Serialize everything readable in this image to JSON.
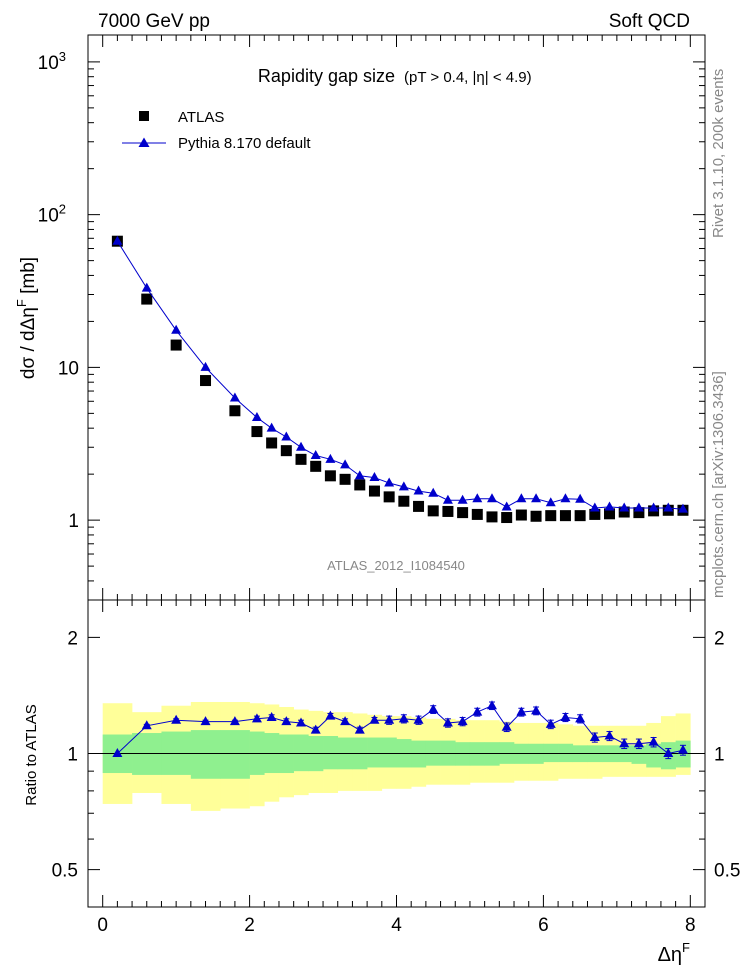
{
  "header": {
    "left": "7000 GeV pp",
    "right": "Soft QCD"
  },
  "side_text": {
    "top": "Rivet 3.1.10,  200k events",
    "bottom": "mcplots.cern.ch [arXiv:1306.3436]"
  },
  "chart_data": [
    {
      "type": "scatter",
      "title_main": "Rapidity gap size",
      "title_cuts": "(pT > 0.4, |η| < 4.9)",
      "ylabel": "dσ / dΔηF [mb]",
      "ylabel_parts": {
        "pre": "dσ / dΔη",
        "sup": "F",
        "post": " [mb]"
      },
      "yscale": "log",
      "xlim": [
        -0.2,
        8.2
      ],
      "ylim": [
        0.3,
        1500
      ],
      "y_ticks": [
        {
          "value": 1000,
          "base": "10",
          "exp": "3"
        },
        {
          "value": 100,
          "base": "10",
          "exp": "2"
        },
        {
          "value": 10,
          "base": "10",
          "exp": ""
        },
        {
          "value": 1,
          "base": "1",
          "exp": ""
        }
      ],
      "watermark": "ATLAS_2012_I1084540",
      "legend": [
        {
          "label": "ATLAS",
          "marker": "square",
          "color": "#000000"
        },
        {
          "label": "Pythia 8.170 default",
          "marker": "triangle",
          "color": "#0000cc"
        }
      ],
      "series": [
        {
          "name": "ATLAS",
          "x": [
            0.2,
            0.6,
            1.0,
            1.4,
            1.8,
            2.1,
            2.3,
            2.5,
            2.7,
            2.9,
            3.1,
            3.3,
            3.5,
            3.7,
            3.9,
            4.1,
            4.3,
            4.5,
            4.7,
            4.9,
            5.1,
            5.3,
            5.5,
            5.7,
            5.9,
            6.1,
            6.3,
            6.5,
            6.7,
            6.9,
            7.1,
            7.3,
            7.5,
            7.7,
            7.9
          ],
          "y": [
            67,
            28,
            14,
            8.2,
            5.2,
            3.8,
            3.2,
            2.85,
            2.5,
            2.25,
            1.95,
            1.85,
            1.7,
            1.55,
            1.42,
            1.33,
            1.23,
            1.15,
            1.14,
            1.12,
            1.09,
            1.05,
            1.04,
            1.08,
            1.06,
            1.07,
            1.07,
            1.07,
            1.09,
            1.1,
            1.13,
            1.12,
            1.15,
            1.16,
            1.16
          ]
        },
        {
          "name": "Pythia 8.170 default",
          "x": [
            0.2,
            0.6,
            1.0,
            1.4,
            1.8,
            2.1,
            2.3,
            2.5,
            2.7,
            2.9,
            3.1,
            3.3,
            3.5,
            3.7,
            3.9,
            4.1,
            4.3,
            4.5,
            4.7,
            4.9,
            5.1,
            5.3,
            5.5,
            5.7,
            5.9,
            6.1,
            6.3,
            6.5,
            6.7,
            6.9,
            7.1,
            7.3,
            7.5,
            7.7,
            7.9
          ],
          "y": [
            67,
            33,
            17.5,
            10,
            6.3,
            4.7,
            4.0,
            3.5,
            3.0,
            2.65,
            2.5,
            2.3,
            1.95,
            1.9,
            1.75,
            1.65,
            1.55,
            1.5,
            1.35,
            1.35,
            1.38,
            1.38,
            1.22,
            1.38,
            1.38,
            1.3,
            1.38,
            1.37,
            1.2,
            1.22,
            1.2,
            1.2,
            1.2,
            1.2,
            1.18
          ]
        }
      ]
    },
    {
      "type": "scatter",
      "ylabel": "Ratio to ATLAS",
      "xlabel": "ΔηF",
      "xlabel_parts": {
        "pre": "Δη",
        "sup": "F"
      },
      "yscale": "log",
      "xlim": [
        -0.2,
        8.2
      ],
      "ylim": [
        0.4,
        2.5
      ],
      "y_ticks": [
        {
          "value": 2,
          "label": "2"
        },
        {
          "value": 1,
          "label": "1"
        },
        {
          "value": 0.5,
          "label": "0.5"
        }
      ],
      "x_ticks": [
        {
          "value": 0,
          "label": "0"
        },
        {
          "value": 2,
          "label": "2"
        },
        {
          "value": 4,
          "label": "4"
        },
        {
          "value": 6,
          "label": "6"
        },
        {
          "value": 8,
          "label": "8"
        }
      ],
      "band_colors": {
        "total": "#ffff99",
        "stat": "#8ff08f"
      },
      "bin_edges": [
        0,
        0.4,
        0.8,
        1.2,
        1.6,
        2.0,
        2.2,
        2.4,
        2.6,
        2.8,
        3.0,
        3.2,
        3.4,
        3.6,
        3.8,
        4.0,
        4.2,
        4.4,
        4.6,
        4.8,
        5.0,
        5.2,
        5.4,
        5.6,
        5.8,
        6.0,
        6.2,
        6.4,
        6.6,
        6.8,
        7.0,
        7.2,
        7.4,
        7.6,
        7.8,
        8.0
      ],
      "band_total_lo": [
        0.74,
        0.79,
        0.74,
        0.71,
        0.72,
        0.73,
        0.75,
        0.77,
        0.78,
        0.79,
        0.79,
        0.8,
        0.8,
        0.8,
        0.81,
        0.81,
        0.82,
        0.83,
        0.83,
        0.83,
        0.84,
        0.84,
        0.84,
        0.85,
        0.85,
        0.85,
        0.86,
        0.86,
        0.86,
        0.87,
        0.87,
        0.87,
        0.87,
        0.87,
        0.88
      ],
      "band_total_hi": [
        1.35,
        1.28,
        1.33,
        1.36,
        1.36,
        1.35,
        1.34,
        1.32,
        1.3,
        1.29,
        1.28,
        1.28,
        1.27,
        1.26,
        1.25,
        1.25,
        1.24,
        1.23,
        1.23,
        1.22,
        1.22,
        1.22,
        1.21,
        1.2,
        1.2,
        1.2,
        1.19,
        1.18,
        1.18,
        1.18,
        1.18,
        1.18,
        1.2,
        1.25,
        1.27
      ],
      "band_stat_lo": [
        0.89,
        0.88,
        0.88,
        0.86,
        0.86,
        0.88,
        0.89,
        0.89,
        0.9,
        0.9,
        0.91,
        0.91,
        0.91,
        0.92,
        0.92,
        0.92,
        0.92,
        0.93,
        0.93,
        0.93,
        0.93,
        0.93,
        0.94,
        0.94,
        0.94,
        0.95,
        0.95,
        0.95,
        0.95,
        0.95,
        0.95,
        0.94,
        0.92,
        0.91,
        0.92
      ],
      "band_stat_hi": [
        1.12,
        1.13,
        1.14,
        1.15,
        1.15,
        1.14,
        1.13,
        1.12,
        1.12,
        1.11,
        1.11,
        1.1,
        1.1,
        1.1,
        1.1,
        1.09,
        1.08,
        1.08,
        1.08,
        1.07,
        1.07,
        1.07,
        1.07,
        1.06,
        1.06,
        1.06,
        1.06,
        1.05,
        1.05,
        1.05,
        1.05,
        1.05,
        1.06,
        1.07,
        1.08
      ],
      "ratio_x": [
        0.2,
        0.6,
        1.0,
        1.4,
        1.8,
        2.1,
        2.3,
        2.5,
        2.7,
        2.9,
        3.1,
        3.3,
        3.5,
        3.7,
        3.9,
        4.1,
        4.3,
        4.5,
        4.7,
        4.9,
        5.1,
        5.3,
        5.5,
        5.7,
        5.9,
        6.1,
        6.3,
        6.5,
        6.7,
        6.9,
        7.1,
        7.3,
        7.5,
        7.7,
        7.9
      ],
      "ratio_y": [
        1.0,
        1.18,
        1.22,
        1.21,
        1.21,
        1.23,
        1.24,
        1.21,
        1.2,
        1.15,
        1.25,
        1.21,
        1.15,
        1.22,
        1.22,
        1.23,
        1.22,
        1.3,
        1.2,
        1.21,
        1.28,
        1.33,
        1.17,
        1.28,
        1.29,
        1.19,
        1.24,
        1.23,
        1.1,
        1.11,
        1.06,
        1.06,
        1.07,
        1.0,
        1.02
      ],
      "ratio_err": [
        0.0,
        0.01,
        0.01,
        0.01,
        0.01,
        0.02,
        0.02,
        0.02,
        0.02,
        0.02,
        0.02,
        0.02,
        0.02,
        0.02,
        0.03,
        0.03,
        0.03,
        0.03,
        0.03,
        0.03,
        0.03,
        0.03,
        0.03,
        0.03,
        0.03,
        0.03,
        0.03,
        0.03,
        0.03,
        0.03,
        0.03,
        0.03,
        0.03,
        0.03,
        0.03
      ]
    }
  ]
}
